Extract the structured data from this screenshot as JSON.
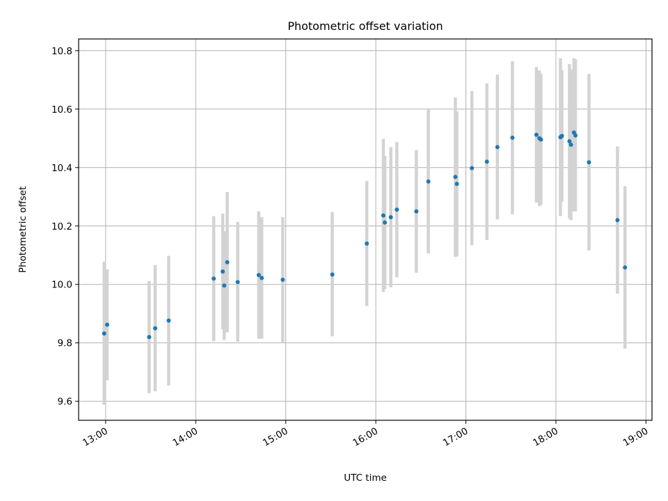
{
  "chart_data": {
    "type": "scatter",
    "title": "Photometric offset variation",
    "xlabel": "UTC time",
    "ylabel": "Photometric offset",
    "xlim": [
      "12:42",
      "19:04"
    ],
    "ylim": [
      9.535,
      10.84
    ],
    "x_ticks": [
      "13:00",
      "14:00",
      "15:00",
      "16:00",
      "17:00",
      "18:00",
      "19:00"
    ],
    "y_ticks": [
      "9.6",
      "9.8",
      "10.0",
      "10.2",
      "10.4",
      "10.6",
      "10.8"
    ],
    "grid": true,
    "colors": {
      "point": "#1f77b4",
      "errorbar": "#d3d3d3",
      "grid": "#b0b0b0"
    },
    "points": [
      {
        "x": "12:59",
        "y": 9.832,
        "lo": 9.588,
        "hi": 10.078
      },
      {
        "x": "13:01",
        "y": 9.862,
        "lo": 9.672,
        "hi": 10.052
      },
      {
        "x": "13:29",
        "y": 9.82,
        "lo": 9.628,
        "hi": 10.012
      },
      {
        "x": "13:33",
        "y": 9.85,
        "lo": 9.634,
        "hi": 10.066
      },
      {
        "x": "13:42",
        "y": 9.876,
        "lo": 9.654,
        "hi": 10.098
      },
      {
        "x": "14:12",
        "y": 10.02,
        "lo": 9.806,
        "hi": 10.234
      },
      {
        "x": "14:18",
        "y": 10.044,
        "lo": 9.846,
        "hi": 10.242
      },
      {
        "x": "14:19",
        "y": 9.996,
        "lo": 9.81,
        "hi": 10.182
      },
      {
        "x": "14:21",
        "y": 10.076,
        "lo": 9.836,
        "hi": 10.316
      },
      {
        "x": "14:28",
        "y": 10.008,
        "lo": 9.804,
        "hi": 10.214
      },
      {
        "x": "14:42",
        "y": 10.032,
        "lo": 9.814,
        "hi": 10.25
      },
      {
        "x": "14:44",
        "y": 10.022,
        "lo": 9.814,
        "hi": 10.23
      },
      {
        "x": "14:58",
        "y": 10.016,
        "lo": 9.802,
        "hi": 10.23
      },
      {
        "x": "15:31",
        "y": 10.034,
        "lo": 9.822,
        "hi": 10.248
      },
      {
        "x": "15:54",
        "y": 10.14,
        "lo": 9.926,
        "hi": 10.354
      },
      {
        "x": "16:05",
        "y": 10.236,
        "lo": 9.974,
        "hi": 10.498
      },
      {
        "x": "16:06",
        "y": 10.212,
        "lo": 9.984,
        "hi": 10.44
      },
      {
        "x": "16:10",
        "y": 10.23,
        "lo": 9.99,
        "hi": 10.47
      },
      {
        "x": "16:14",
        "y": 10.256,
        "lo": 10.024,
        "hi": 10.488
      },
      {
        "x": "16:27",
        "y": 10.25,
        "lo": 10.04,
        "hi": 10.46
      },
      {
        "x": "16:35",
        "y": 10.352,
        "lo": 10.106,
        "hi": 10.598
      },
      {
        "x": "16:53",
        "y": 10.368,
        "lo": 10.094,
        "hi": 10.64
      },
      {
        "x": "16:54",
        "y": 10.344,
        "lo": 10.096,
        "hi": 10.592
      },
      {
        "x": "17:04",
        "y": 10.398,
        "lo": 10.134,
        "hi": 10.662
      },
      {
        "x": "17:14",
        "y": 10.42,
        "lo": 10.152,
        "hi": 10.688
      },
      {
        "x": "17:21",
        "y": 10.47,
        "lo": 10.222,
        "hi": 10.718
      },
      {
        "x": "17:31",
        "y": 10.502,
        "lo": 10.24,
        "hi": 10.764
      },
      {
        "x": "17:47",
        "y": 10.512,
        "lo": 10.28,
        "hi": 10.744
      },
      {
        "x": "17:49",
        "y": 10.5,
        "lo": 10.268,
        "hi": 10.732
      },
      {
        "x": "17:50",
        "y": 10.496,
        "lo": 10.272,
        "hi": 10.72
      },
      {
        "x": "18:03",
        "y": 10.504,
        "lo": 10.234,
        "hi": 10.774
      },
      {
        "x": "18:04",
        "y": 10.508,
        "lo": 10.282,
        "hi": 10.734
      },
      {
        "x": "18:09",
        "y": 10.49,
        "lo": 10.226,
        "hi": 10.754
      },
      {
        "x": "18:10",
        "y": 10.478,
        "lo": 10.22,
        "hi": 10.736
      },
      {
        "x": "18:12",
        "y": 10.52,
        "lo": 10.25,
        "hi": 10.774
      },
      {
        "x": "18:13",
        "y": 10.51,
        "lo": 10.25,
        "hi": 10.77
      },
      {
        "x": "18:22",
        "y": 10.418,
        "lo": 10.116,
        "hi": 10.72
      },
      {
        "x": "18:41",
        "y": 10.22,
        "lo": 9.968,
        "hi": 10.472
      },
      {
        "x": "18:46",
        "y": 10.058,
        "lo": 9.78,
        "hi": 10.336
      }
    ]
  }
}
